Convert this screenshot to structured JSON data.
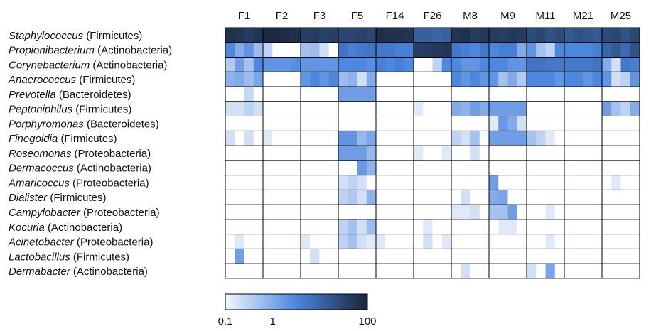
{
  "chart_data": {
    "type": "heatmap",
    "title": "",
    "xlabel": "",
    "ylabel": "",
    "groups": [
      "F1",
      "F2",
      "F3",
      "F5",
      "F14",
      "F26",
      "M8",
      "M9",
      "M11",
      "M21",
      "M25"
    ],
    "subcolumns_per_group": 4,
    "rows": [
      {
        "genus": "Staphylococcus",
        "phylum": "(Firmicutes)",
        "values": [
          60,
          55,
          45,
          55,
          80,
          80,
          75,
          70,
          40,
          45,
          35,
          40,
          30,
          30,
          35,
          30,
          70,
          65,
          60,
          55,
          12,
          12,
          10,
          12,
          55,
          60,
          45,
          50,
          45,
          40,
          50,
          45,
          25,
          30,
          20,
          25,
          15,
          20,
          18,
          15,
          25,
          30,
          20,
          30
        ]
      },
      {
        "genus": "Propionibacterium",
        "phylum": "(Actinobacteria)",
        "values": [
          3,
          1,
          2,
          0.6,
          0.3,
          0,
          0,
          0,
          0.5,
          0.6,
          0.2,
          0,
          6,
          4,
          5,
          6,
          5,
          5,
          4,
          4,
          40,
          45,
          50,
          55,
          5,
          4,
          3,
          5,
          3,
          4,
          4,
          1,
          2,
          0.5,
          0.3,
          3,
          3,
          3,
          3,
          4,
          10,
          15,
          8,
          20
        ]
      },
      {
        "genus": "Corynebacterium",
        "phylum": "(Actinobacteria)",
        "values": [
          0.4,
          1.5,
          0.5,
          3,
          2,
          2,
          2,
          2.5,
          2,
          2,
          2,
          2,
          3,
          3,
          3,
          2.5,
          4,
          3,
          4,
          3,
          0,
          0,
          0.3,
          3,
          3,
          2,
          2,
          3,
          3,
          3,
          2,
          2,
          6,
          6,
          5,
          5,
          5,
          5,
          5,
          6,
          1,
          0.2,
          5,
          4
        ]
      },
      {
        "genus": "Anaerococcus",
        "phylum": "(Firmicutes)",
        "values": [
          0.8,
          1,
          0.6,
          1.2,
          0,
          0,
          0,
          0,
          2,
          3,
          2,
          3,
          0.6,
          0.8,
          0.2,
          1,
          0,
          0,
          0,
          0,
          0,
          0,
          0,
          0,
          3,
          2,
          3,
          2,
          2,
          0.5,
          1,
          0.4,
          3,
          3,
          3,
          2,
          3,
          3,
          2,
          3,
          2,
          0.2,
          0.3,
          2
        ]
      },
      {
        "genus": "Prevotella",
        "phylum": "(Bacteroidetes)",
        "values": [
          0,
          0,
          0.25,
          0,
          0,
          0,
          0,
          0,
          0,
          0,
          0,
          0,
          1.5,
          1.5,
          1.5,
          1.5,
          0,
          0,
          0,
          0,
          0,
          0,
          0,
          0,
          0,
          0,
          0,
          0,
          0,
          0,
          0,
          0,
          0,
          0,
          0,
          0,
          0,
          0,
          0,
          0,
          0,
          0,
          0,
          0
        ]
      },
      {
        "genus": "Peptoniphilus",
        "phylum": "(Firmicutes)",
        "values": [
          0.2,
          0.2,
          0.3,
          0.2,
          0,
          0,
          0,
          0,
          0,
          0,
          0,
          0,
          0,
          0,
          0,
          0,
          0,
          0,
          0,
          0,
          0.15,
          0,
          0,
          0,
          1,
          0.8,
          1.5,
          1,
          1.5,
          1.5,
          1.5,
          1.5,
          0,
          0,
          0,
          0,
          0,
          0,
          0,
          0,
          1.5,
          0.5,
          0.3,
          1
        ]
      },
      {
        "genus": "Porphyromonas",
        "phylum": "(Bacteroidetes)",
        "values": [
          0,
          0,
          0,
          0,
          0,
          0,
          0,
          0,
          0,
          0,
          0,
          0,
          0,
          0,
          0,
          0,
          0,
          0,
          0,
          0,
          0,
          0,
          0,
          0,
          0,
          0,
          0,
          0,
          0.15,
          1.8,
          1,
          0.2,
          0,
          0,
          0,
          0,
          0,
          0,
          0,
          0,
          0,
          0,
          0,
          0
        ]
      },
      {
        "genus": "Finegoldia",
        "phylum": "(Firmicutes)",
        "values": [
          0.2,
          0,
          0.2,
          0,
          0.15,
          0,
          0,
          0,
          0,
          0,
          0,
          0,
          2,
          2,
          0.7,
          1.2,
          0,
          0,
          0,
          0,
          0,
          0,
          0,
          0,
          0.3,
          0.2,
          0.5,
          0,
          1.5,
          1.5,
          1.5,
          1.5,
          0.5,
          0.3,
          0.15,
          0,
          0,
          0,
          0,
          0,
          0,
          0,
          0,
          0
        ]
      },
      {
        "genus": "Roseomonas",
        "phylum": "(Proteobacteria)",
        "values": [
          0,
          0,
          0,
          0,
          0,
          0,
          0,
          0,
          0,
          0,
          0,
          0,
          1.5,
          1.5,
          1.5,
          0.7,
          0,
          0,
          0,
          0,
          0.15,
          0,
          0,
          0.15,
          0,
          0,
          0.2,
          0,
          0,
          0,
          0,
          0,
          0,
          0,
          0,
          0,
          0,
          0,
          0,
          0,
          0,
          0,
          0,
          0
        ]
      },
      {
        "genus": "Dermacoccus",
        "phylum": "(Actinobacteria)",
        "values": [
          0,
          0,
          0,
          0,
          0,
          0,
          0,
          0,
          0,
          0,
          0,
          0,
          0,
          0,
          1.8,
          0.8,
          0,
          0,
          0,
          0,
          0,
          0,
          0,
          0,
          0,
          0,
          0,
          0,
          0,
          0,
          0,
          0,
          0,
          0,
          0,
          0,
          0,
          0,
          0,
          0,
          0,
          0,
          0,
          0
        ]
      },
      {
        "genus": "Amaricoccus",
        "phylum": "(Proteobacteria)",
        "values": [
          0,
          0,
          0,
          0,
          0,
          0,
          0,
          0,
          0,
          0,
          0,
          0,
          0.2,
          0.3,
          0.2,
          0,
          0,
          0,
          0,
          0,
          0,
          0,
          0,
          0,
          0,
          0,
          0,
          0,
          1.5,
          0,
          0,
          0,
          0,
          0,
          0,
          0,
          0,
          0,
          0,
          0,
          0,
          0.15,
          0,
          0
        ]
      },
      {
        "genus": "Dialister",
        "phylum": "(Firmicutes)",
        "values": [
          0,
          0,
          0,
          0,
          0,
          0,
          0,
          0,
          0,
          0,
          0,
          0,
          0.3,
          0.4,
          0.2,
          0.8,
          0,
          0,
          0,
          0,
          0,
          0,
          0,
          0,
          0,
          0.2,
          0,
          0,
          1,
          1.2,
          0,
          0,
          0,
          0,
          0,
          0,
          0,
          0,
          0,
          0,
          0,
          0,
          0,
          0
        ]
      },
      {
        "genus": "Campylobacter",
        "phylum": "(Proteobacteria)",
        "values": [
          0,
          0,
          0,
          0,
          0,
          0,
          0,
          0,
          0,
          0,
          0,
          0,
          0,
          0,
          0,
          0,
          0,
          0,
          0,
          0,
          0,
          0,
          0,
          0,
          0.15,
          0.15,
          0.2,
          0,
          0.5,
          0.5,
          1.5,
          0,
          0,
          0,
          0.15,
          0,
          0,
          0,
          0,
          0,
          0,
          0,
          0,
          0
        ]
      },
      {
        "genus": "Kocuria",
        "phylum": "(Actinobacteria)",
        "values": [
          0,
          0,
          0,
          0,
          0,
          0,
          0,
          0,
          0,
          0,
          0,
          0,
          0.3,
          0.5,
          0.2,
          0.6,
          0,
          0,
          0,
          0,
          0,
          0.15,
          0,
          0,
          0,
          0,
          0,
          0,
          0,
          0.15,
          0.15,
          0,
          0,
          0,
          0,
          0,
          0,
          0,
          0,
          0,
          0,
          0,
          0,
          0
        ]
      },
      {
        "genus": "Acinetobacter",
        "phylum": "(Proteobacteria)",
        "values": [
          0,
          0.15,
          0,
          0,
          0,
          0,
          0,
          0,
          0.15,
          0,
          0,
          0,
          0.3,
          0.5,
          0.2,
          0.15,
          0.15,
          0,
          0,
          0,
          0,
          0.2,
          0,
          0.15,
          0,
          0,
          0,
          0,
          0,
          0,
          0,
          0,
          0,
          0,
          0.15,
          0,
          0,
          0,
          0,
          0,
          0,
          0,
          0,
          0
        ]
      },
      {
        "genus": "Lactobacillus",
        "phylum": "(Firmicutes)",
        "values": [
          0,
          1.5,
          0,
          0,
          0,
          0,
          0,
          0,
          0,
          0.2,
          0,
          0,
          0,
          0,
          0,
          0,
          0,
          0,
          0,
          0,
          0,
          0,
          0,
          0,
          0,
          0,
          0,
          0,
          0,
          0,
          0,
          0,
          0,
          0,
          0,
          0,
          0,
          0,
          0,
          0,
          0,
          0,
          0,
          0
        ]
      },
      {
        "genus": "Dermabacter",
        "phylum": "(Actinobacteria)",
        "values": [
          0,
          0,
          0,
          0,
          0,
          0,
          0,
          0,
          0,
          0,
          0,
          0,
          0,
          0,
          0,
          0,
          0,
          0,
          0,
          0,
          0,
          0,
          0,
          0,
          0,
          0.2,
          0,
          0,
          0,
          0,
          0,
          0,
          0.2,
          0,
          1.2,
          0,
          0,
          0,
          0,
          0,
          0,
          0,
          0,
          0
        ]
      }
    ],
    "colorbar": {
      "scale": "log",
      "min": 0.1,
      "max": 100,
      "ticks": [
        {
          "value": 0.1,
          "label": "0.1"
        },
        {
          "value": 1,
          "label": "1"
        },
        {
          "value": 100,
          "label": "100"
        }
      ],
      "stops": [
        "#f4f6fc",
        "#4a86e0",
        "#1a2438"
      ]
    },
    "zero_color": "#ffffff",
    "grid_color": "#000000"
  }
}
